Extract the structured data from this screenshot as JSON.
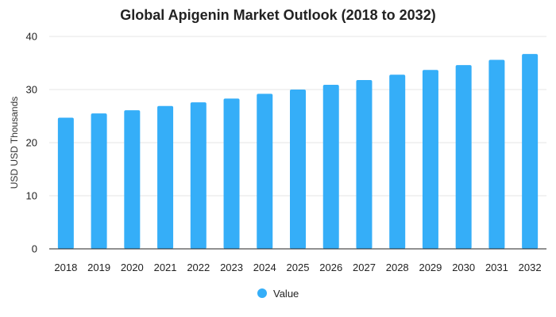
{
  "chart_data": {
    "type": "bar",
    "title": "Global Apigenin Market Outlook (2018 to 2032)",
    "xlabel": "",
    "ylabel": "USD USD Thousands",
    "categories": [
      "2018",
      "2019",
      "2020",
      "2021",
      "2022",
      "2023",
      "2024",
      "2025",
      "2026",
      "2027",
      "2028",
      "2029",
      "2030",
      "2031",
      "2032"
    ],
    "series": [
      {
        "name": "Value",
        "values": [
          24.7,
          25.5,
          26.1,
          26.9,
          27.6,
          28.3,
          29.2,
          30.0,
          30.9,
          31.8,
          32.8,
          33.7,
          34.6,
          35.6,
          36.7
        ]
      }
    ],
    "ylim": [
      0,
      40
    ],
    "yticks": [
      0,
      10,
      20,
      30,
      40
    ],
    "grid": true,
    "legend_position": "bottom",
    "colors": {
      "bar": "#35aef8",
      "grid": "#e6e6e6",
      "text": "#222222"
    }
  }
}
